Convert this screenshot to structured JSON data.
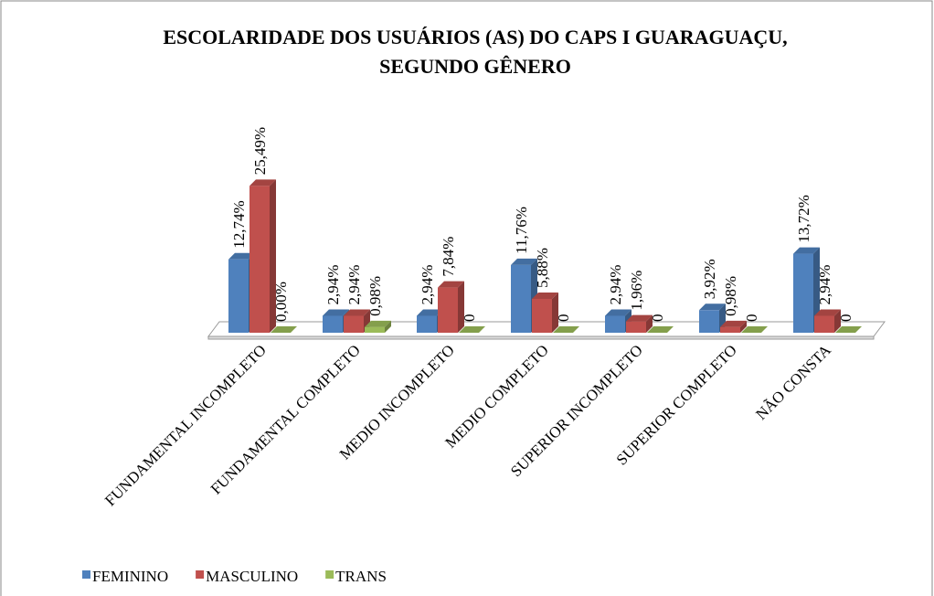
{
  "chart_data": {
    "type": "bar3d",
    "title": [
      "ESCOLARIDADE DOS  USUÁRIOS (AS) DO CAPS I GUARAGUAÇU,",
      "SEGUNDO GÊNERO"
    ],
    "categories": [
      "FUNDAMENTAL INCOMPLETO",
      "FUNDAMENTAL COMPLETO",
      "MEDIO INCOMPLETO",
      "MEDIO COMPLETO",
      "SUPERIOR INCOMPLETO",
      "SUPERIOR COMPLETO",
      "NÃO CONSTA"
    ],
    "series": [
      {
        "name": "FEMININO",
        "color": "#4f81bd",
        "values": [
          12.74,
          2.94,
          2.94,
          11.76,
          2.94,
          3.92,
          13.72
        ],
        "value_labels": [
          "12,74%",
          "2,94%",
          "2,94%",
          "11,76%",
          "2,94%",
          "3,92%",
          "13,72%"
        ]
      },
      {
        "name": "MASCULINO",
        "color": "#c0504d",
        "values": [
          25.49,
          2.94,
          7.84,
          5.88,
          1.96,
          0.98,
          2.94
        ],
        "value_labels": [
          "25,49%",
          "2,94%",
          "7,84%",
          "5,88%",
          "1,96%",
          "0,98%",
          "2,94%"
        ]
      },
      {
        "name": "TRANS",
        "color": "#9bbb59",
        "values": [
          0,
          0.98,
          0,
          0,
          0,
          0,
          0
        ],
        "value_labels": [
          "0,00%",
          "0,98%",
          "0",
          "0",
          "0",
          "0",
          "0"
        ]
      }
    ],
    "legend": "bottom-left"
  }
}
